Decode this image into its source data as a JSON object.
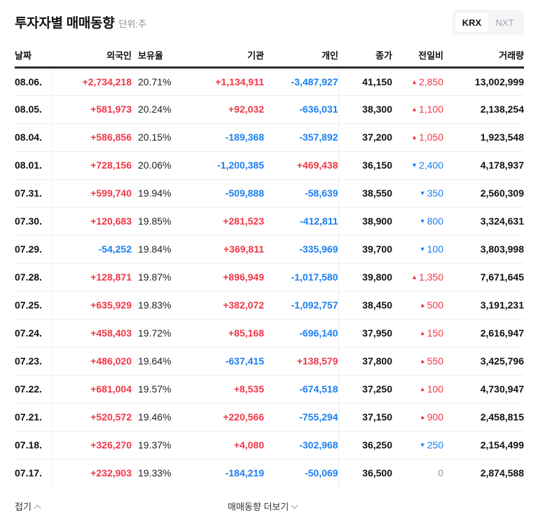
{
  "header": {
    "title": "투자자별 매매동향",
    "unit": "단위:주",
    "exchange_tabs": [
      {
        "label": "KRX",
        "active": true
      },
      {
        "label": "NXT",
        "active": false
      }
    ]
  },
  "table": {
    "columns": [
      "날짜",
      "외국인",
      "보유율",
      "기관",
      "개인",
      "종가",
      "전일비",
      "거래량"
    ],
    "rows": [
      {
        "date": "08.06.",
        "foreign": "+2,734,218",
        "foreign_dir": "up",
        "holding": "20.71%",
        "institution": "+1,134,911",
        "institution_dir": "up",
        "individual": "-3,487,927",
        "individual_dir": "down",
        "close": "41,150",
        "change": "2,850",
        "change_dir": "up",
        "volume": "13,002,999"
      },
      {
        "date": "08.05.",
        "foreign": "+581,973",
        "foreign_dir": "up",
        "holding": "20.24%",
        "institution": "+92,032",
        "institution_dir": "up",
        "individual": "-636,031",
        "individual_dir": "down",
        "close": "38,300",
        "change": "1,100",
        "change_dir": "up",
        "volume": "2,138,254"
      },
      {
        "date": "08.04.",
        "foreign": "+586,856",
        "foreign_dir": "up",
        "holding": "20.15%",
        "institution": "-189,368",
        "institution_dir": "down",
        "individual": "-357,892",
        "individual_dir": "down",
        "close": "37,200",
        "change": "1,050",
        "change_dir": "up",
        "volume": "1,923,548"
      },
      {
        "date": "08.01.",
        "foreign": "+728,156",
        "foreign_dir": "up",
        "holding": "20.06%",
        "institution": "-1,200,385",
        "institution_dir": "down",
        "individual": "+469,438",
        "individual_dir": "up",
        "close": "36,150",
        "change": "2,400",
        "change_dir": "down",
        "volume": "4,178,937"
      },
      {
        "date": "07.31.",
        "foreign": "+599,740",
        "foreign_dir": "up",
        "holding": "19.94%",
        "institution": "-509,888",
        "institution_dir": "down",
        "individual": "-58,639",
        "individual_dir": "down",
        "close": "38,550",
        "change": "350",
        "change_dir": "down",
        "volume": "2,560,309"
      },
      {
        "date": "07.30.",
        "foreign": "+120,683",
        "foreign_dir": "up",
        "holding": "19.85%",
        "institution": "+281,523",
        "institution_dir": "up",
        "individual": "-412,811",
        "individual_dir": "down",
        "close": "38,900",
        "change": "800",
        "change_dir": "down",
        "volume": "3,324,631"
      },
      {
        "date": "07.29.",
        "foreign": "-54,252",
        "foreign_dir": "down",
        "holding": "19.84%",
        "institution": "+369,811",
        "institution_dir": "up",
        "individual": "-335,969",
        "individual_dir": "down",
        "close": "39,700",
        "change": "100",
        "change_dir": "down",
        "volume": "3,803,998"
      },
      {
        "date": "07.28.",
        "foreign": "+128,871",
        "foreign_dir": "up",
        "holding": "19.87%",
        "institution": "+896,949",
        "institution_dir": "up",
        "individual": "-1,017,580",
        "individual_dir": "down",
        "close": "39,800",
        "change": "1,350",
        "change_dir": "up",
        "volume": "7,671,645"
      },
      {
        "date": "07.25.",
        "foreign": "+635,929",
        "foreign_dir": "up",
        "holding": "19.83%",
        "institution": "+382,072",
        "institution_dir": "up",
        "individual": "-1,092,757",
        "individual_dir": "down",
        "close": "38,450",
        "change": "500",
        "change_dir": "up",
        "volume": "3,191,231"
      },
      {
        "date": "07.24.",
        "foreign": "+458,403",
        "foreign_dir": "up",
        "holding": "19.72%",
        "institution": "+85,168",
        "institution_dir": "up",
        "individual": "-696,140",
        "individual_dir": "down",
        "close": "37,950",
        "change": "150",
        "change_dir": "up",
        "volume": "2,616,947"
      },
      {
        "date": "07.23.",
        "foreign": "+486,020",
        "foreign_dir": "up",
        "holding": "19.64%",
        "institution": "-637,415",
        "institution_dir": "down",
        "individual": "+138,579",
        "individual_dir": "up",
        "close": "37,800",
        "change": "550",
        "change_dir": "up",
        "volume": "3,425,796"
      },
      {
        "date": "07.22.",
        "foreign": "+681,004",
        "foreign_dir": "up",
        "holding": "19.57%",
        "institution": "+8,535",
        "institution_dir": "up",
        "individual": "-674,518",
        "individual_dir": "down",
        "close": "37,250",
        "change": "100",
        "change_dir": "up",
        "volume": "4,730,947"
      },
      {
        "date": "07.21.",
        "foreign": "+520,572",
        "foreign_dir": "up",
        "holding": "19.46%",
        "institution": "+220,566",
        "institution_dir": "up",
        "individual": "-755,294",
        "individual_dir": "down",
        "close": "37,150",
        "change": "900",
        "change_dir": "up",
        "volume": "2,458,815"
      },
      {
        "date": "07.18.",
        "foreign": "+326,270",
        "foreign_dir": "up",
        "holding": "19.37%",
        "institution": "+4,080",
        "institution_dir": "up",
        "individual": "-302,968",
        "individual_dir": "down",
        "close": "36,250",
        "change": "250",
        "change_dir": "down",
        "volume": "2,154,499"
      },
      {
        "date": "07.17.",
        "foreign": "+232,903",
        "foreign_dir": "up",
        "holding": "19.33%",
        "institution": "-184,219",
        "institution_dir": "down",
        "individual": "-50,069",
        "individual_dir": "down",
        "close": "36,500",
        "change": "0",
        "change_dir": "flat",
        "volume": "2,874,588"
      }
    ]
  },
  "footer": {
    "fold_label": "접기",
    "more_label": "매매동향 더보기"
  },
  "colors": {
    "up": "#f23645",
    "down": "#1b7ff0",
    "flat": "#999999"
  }
}
